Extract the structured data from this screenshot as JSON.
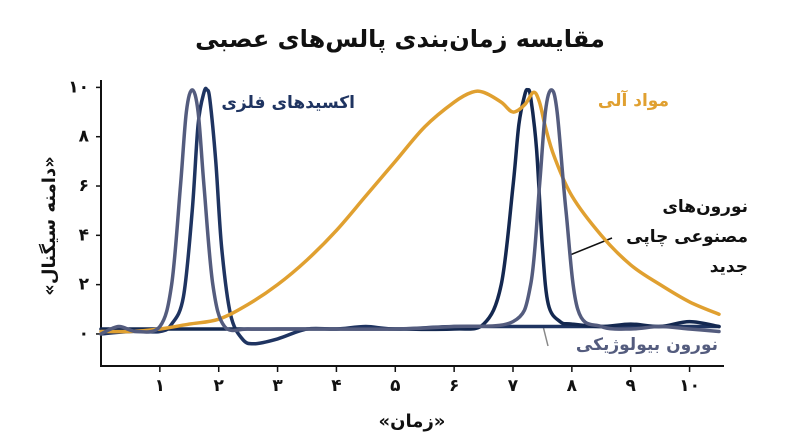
{
  "chart_data": {
    "type": "line",
    "title": "مقایسه زمان‌بندی پالس‌های عصبی",
    "x_label": "«زمان»",
    "y_label": "«دامنه سیگنال»",
    "xlim": [
      0,
      10.5
    ],
    "ylim": [
      -1.3,
      10.3
    ],
    "xticks": [
      {
        "value": 1,
        "label": "۱"
      },
      {
        "value": 2,
        "label": "۲"
      },
      {
        "value": 3,
        "label": "۳"
      },
      {
        "value": 4,
        "label": "۴"
      },
      {
        "value": 5,
        "label": "۵"
      },
      {
        "value": 6,
        "label": "۶"
      },
      {
        "value": 7,
        "label": "۷"
      },
      {
        "value": 8,
        "label": "۸"
      },
      {
        "value": 9,
        "label": "۹"
      },
      {
        "value": 10,
        "label": "۱۰"
      }
    ],
    "yticks": [
      {
        "value": 0,
        "label": "۰"
      },
      {
        "value": 2,
        "label": "۲"
      },
      {
        "value": 4,
        "label": "۴"
      },
      {
        "value": 6,
        "label": "۶"
      },
      {
        "value": 8,
        "label": "۸"
      },
      {
        "value": 10,
        "label": "۱۰"
      }
    ],
    "series": [
      {
        "name": "اکسیدهای فلزی",
        "color": "#1f3461",
        "x": [
          0,
          0.5,
          1,
          1.2,
          1.4,
          1.55,
          1.65,
          1.75,
          1.8,
          1.85,
          1.95,
          2.05,
          2.2,
          2.4,
          2.6,
          3,
          3.5,
          4,
          4.5,
          5,
          6,
          7,
          8,
          9,
          10,
          10.5
        ],
        "values": [
          0,
          0.1,
          0.1,
          0.4,
          1.5,
          5,
          8.5,
          9.8,
          9.9,
          9.5,
          7,
          3.5,
          0.8,
          -0.2,
          -0.4,
          -0.2,
          0.2,
          0.2,
          0.3,
          0.2,
          0.3,
          0.3,
          0.3,
          0.3,
          0.3,
          0.3
        ]
      },
      {
        "name": "نورون‌های مصنوعی چاپی جدید",
        "color": "#142850",
        "x": [
          0,
          1,
          2,
          3,
          4,
          5,
          6,
          6.5,
          6.8,
          7,
          7.1,
          7.2,
          7.25,
          7.3,
          7.4,
          7.5,
          7.6,
          7.8,
          8,
          8.5,
          9,
          9.5,
          10,
          10.5
        ],
        "values": [
          0.2,
          0.2,
          0.2,
          0.2,
          0.2,
          0.2,
          0.2,
          0.4,
          2,
          6,
          8.5,
          9.7,
          9.9,
          9.6,
          7.5,
          3.5,
          1.2,
          0.5,
          0.4,
          0.3,
          0.4,
          0.3,
          0.5,
          0.3
        ]
      },
      {
        "name": "مواد آلی",
        "color": "#e0a030",
        "x": [
          0,
          0.5,
          1,
          1.5,
          2,
          2.5,
          3,
          3.5,
          4,
          4.5,
          5,
          5.5,
          6,
          6.3,
          6.5,
          6.8,
          7,
          7.2,
          7.35,
          7.45,
          7.55,
          7.7,
          8,
          8.5,
          9,
          9.5,
          10,
          10.5
        ],
        "values": [
          0.1,
          0.1,
          0.2,
          0.4,
          0.6,
          1.2,
          2,
          3,
          4.2,
          5.6,
          7,
          8.4,
          9.4,
          9.8,
          9.8,
          9.4,
          9,
          9.3,
          9.8,
          9.4,
          8.4,
          7.2,
          5.6,
          4,
          2.8,
          2,
          1.3,
          0.8
        ]
      },
      {
        "name": "نورون بیولوژیکی",
        "color": "#545c7e",
        "x": [
          0,
          0.3,
          0.6,
          1,
          1.2,
          1.35,
          1.45,
          1.55,
          1.65,
          1.75,
          1.9,
          2.1,
          2.5,
          3,
          4,
          5,
          6,
          7,
          7.3,
          7.45,
          7.55,
          7.65,
          7.75,
          7.9,
          8.1,
          8.5,
          9,
          9.5,
          10,
          10.5
        ],
        "values": [
          0,
          0.3,
          0.1,
          0.3,
          2,
          6,
          9,
          9.9,
          9,
          6,
          2,
          0.3,
          0.2,
          0.2,
          0.2,
          0.2,
          0.3,
          0.5,
          2,
          6,
          9,
          9.9,
          9,
          5,
          1,
          0.3,
          0.2,
          0.3,
          0.2,
          0.1
        ]
      }
    ]
  }
}
